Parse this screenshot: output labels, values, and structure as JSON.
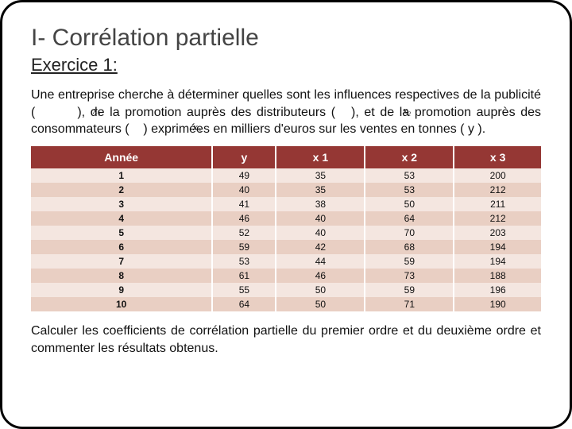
{
  "title": "I- Corrélation partielle",
  "subtitle": "Exercice 1:",
  "para": "Une entreprise cherche à déterminer quelles sont les influences respectives de la publicité (        ), de la promotion auprès des distributeurs (   ), et de la promotion auprès des consommateurs (    ) exprimées en milliers d'euros sur les ventes en tonnes ( y ).",
  "symbols": {
    "x1": "x₁",
    "x2": "x₂",
    "x3": "x₃"
  },
  "table": {
    "headers": [
      "Année",
      "y",
      "x 1",
      "x 2",
      "x 3"
    ],
    "header_bg": "#953734",
    "row_odd_bg": "#f4e6e0",
    "row_even_bg": "#e9cfc3",
    "rows": [
      [
        "1",
        "49",
        "35",
        "53",
        "200"
      ],
      [
        "2",
        "40",
        "35",
        "53",
        "212"
      ],
      [
        "3",
        "41",
        "38",
        "50",
        "211"
      ],
      [
        "4",
        "46",
        "40",
        "64",
        "212"
      ],
      [
        "5",
        "52",
        "40",
        "70",
        "203"
      ],
      [
        "6",
        "59",
        "42",
        "68",
        "194"
      ],
      [
        "7",
        "53",
        "44",
        "59",
        "194"
      ],
      [
        "8",
        "61",
        "46",
        "73",
        "188"
      ],
      [
        "9",
        "55",
        "50",
        "59",
        "196"
      ],
      [
        "10",
        "64",
        "50",
        "71",
        "190"
      ]
    ]
  },
  "question": "Calculer les coefficients de corrélation partielle du premier ordre et du deuxième ordre et commenter les résultats obtenus."
}
